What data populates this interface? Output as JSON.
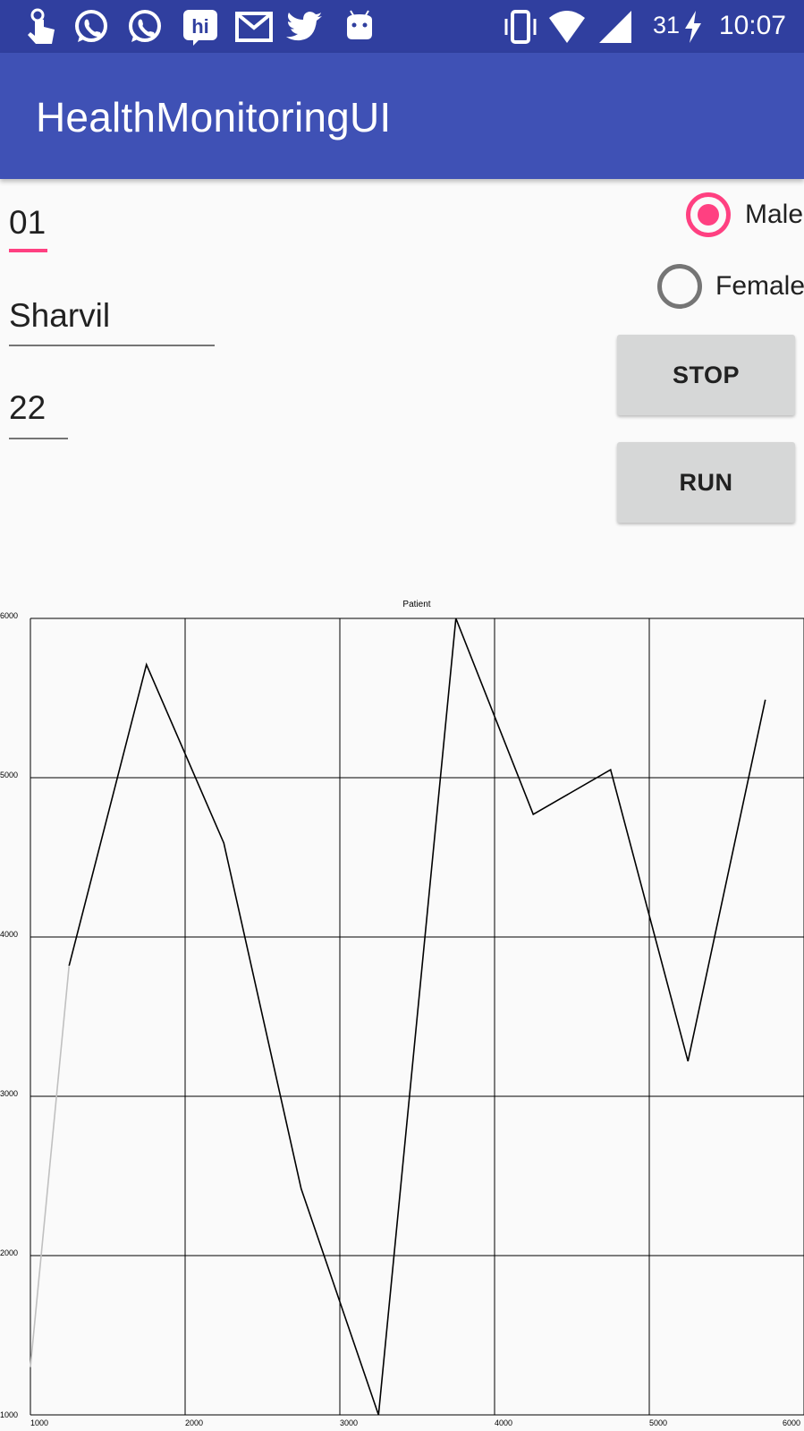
{
  "status_bar": {
    "battery_level": "31",
    "time": "10:07",
    "icons": [
      "touch-icon",
      "whatsapp-icon",
      "whatsapp-icon",
      "hike-icon",
      "gmail-icon",
      "twitter-icon",
      "android-icon",
      "vibrate-icon",
      "wifi-icon",
      "signal-icon",
      "charging-icon"
    ],
    "background_color": "#303f9f"
  },
  "app_bar": {
    "title": "HealthMonitoringUI",
    "background_color": "#3f51b5"
  },
  "form": {
    "patient_id": "01",
    "patient_name": "Sharvil",
    "patient_age": "22",
    "gender_options": [
      {
        "label": "Male",
        "checked": true
      },
      {
        "label": "Female",
        "checked": false
      }
    ],
    "stop_button": "STOP",
    "run_button": "RUN",
    "accent_color": "#ff4081"
  },
  "chart_data": {
    "type": "line",
    "title": "Patient",
    "xlim": [
      1000,
      6000
    ],
    "ylim": [
      1000,
      6000
    ],
    "x_ticks": [
      "1000",
      "2000",
      "3000",
      "4000",
      "5000",
      "6000"
    ],
    "y_ticks": [
      "1000",
      "2000",
      "3000",
      "4000",
      "5000",
      "6000"
    ],
    "grid": true,
    "series": [
      {
        "color": "#000000",
        "x": [
          1250,
          1750,
          2250,
          2750,
          3250,
          3750,
          4250,
          4750,
          5250,
          5750
        ],
        "y": [
          3820,
          5710,
          4590,
          2420,
          1000,
          6000,
          4770,
          5050,
          3220,
          5490
        ]
      },
      {
        "color": "#c0c0c0",
        "x": [
          1000,
          1250
        ],
        "y": [
          1300,
          3820
        ]
      }
    ]
  }
}
